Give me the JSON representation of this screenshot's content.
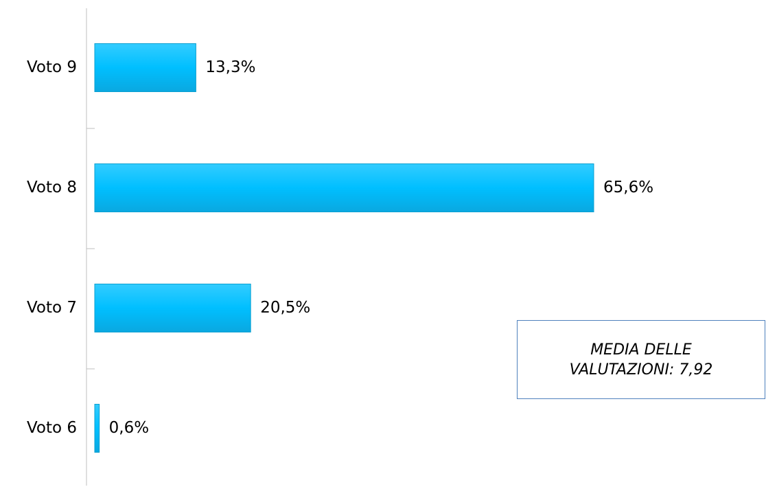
{
  "chart_data": {
    "type": "barh",
    "categories": [
      "Voto 9",
      "Voto 8",
      "Voto 7",
      "Voto 6"
    ],
    "values": [
      13.3,
      65.6,
      20.5,
      0.6
    ],
    "value_labels": [
      "13,3%",
      "65,6%",
      "20,5%",
      "0,6%"
    ],
    "color": "#00bfff",
    "annotation": "MEDIA DELLE VALUTAZIONI: 7,92"
  }
}
